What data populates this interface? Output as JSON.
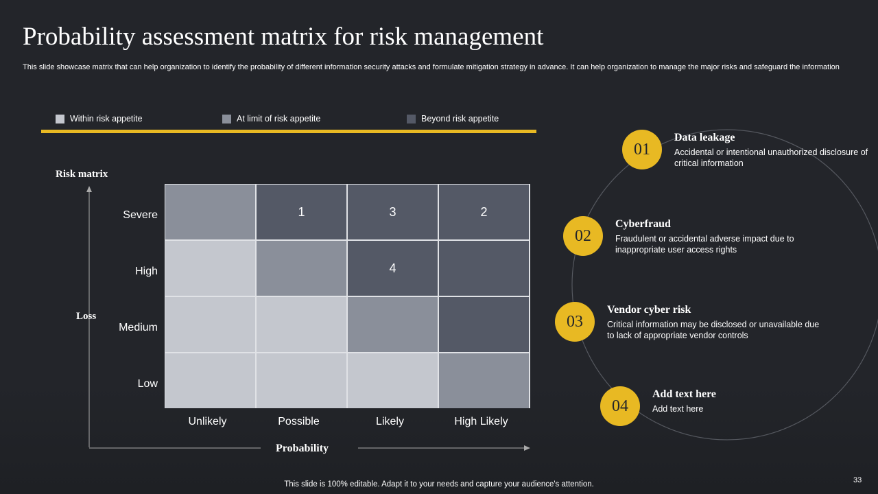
{
  "header": {
    "title": "Probability assessment matrix for risk management",
    "subtitle": "This slide showcase matrix that can help organization to identify the probability of different information security attacks and formulate mitigation strategy in advance. It can help organization to manage the major risks and safeguard the information"
  },
  "legend": [
    {
      "label": "Within risk appetite",
      "color": "#c4c7ce"
    },
    {
      "label": "At limit of risk appetite",
      "color": "#8a8f9a"
    },
    {
      "label": "Beyond risk appetite",
      "color": "#545966"
    }
  ],
  "matrix": {
    "title": "Risk matrix",
    "y_axis": "Loss",
    "x_axis": "Probability",
    "rows": [
      "Severe",
      "High",
      "Medium",
      "Low"
    ],
    "columns": [
      "Unlikely",
      "Possible",
      "Likely",
      "High Likely"
    ],
    "cells": [
      [
        {
          "color": "#8a8f9a"
        },
        {
          "color": "#545966",
          "label": "1"
        },
        {
          "color": "#545966",
          "label": "3"
        },
        {
          "color": "#545966",
          "label": "2"
        }
      ],
      [
        {
          "color": "#c4c7ce"
        },
        {
          "color": "#8a8f9a"
        },
        {
          "color": "#545966",
          "label": "4"
        },
        {
          "color": "#545966"
        }
      ],
      [
        {
          "color": "#c4c7ce"
        },
        {
          "color": "#c4c7ce"
        },
        {
          "color": "#8a8f9a"
        },
        {
          "color": "#545966"
        }
      ],
      [
        {
          "color": "#c4c7ce"
        },
        {
          "color": "#c4c7ce"
        },
        {
          "color": "#c4c7ce"
        },
        {
          "color": "#8a8f9a"
        }
      ]
    ]
  },
  "items": [
    {
      "number": "01",
      "title": "Data leakage",
      "text": "Accidental or intentional unauthorized disclosure of critical information"
    },
    {
      "number": "02",
      "title": "Cyberfraud",
      "text": "Fraudulent or accidental adverse impact due to inappropriate user access rights"
    },
    {
      "number": "03",
      "title": "Vendor cyber risk",
      "text": "Critical information may be disclosed or unavailable due to lack of appropriate vendor controls"
    },
    {
      "number": "04",
      "title": "Add text here",
      "text": "Add text here"
    }
  ],
  "footer": {
    "note": "This slide is 100% editable. Adapt it to your needs and capture your audience's attention.",
    "page": "33"
  }
}
